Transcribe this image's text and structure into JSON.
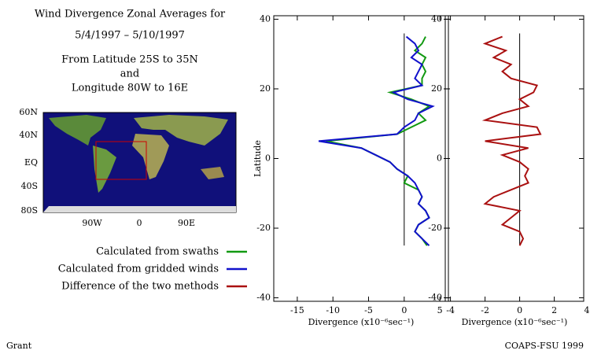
{
  "header": {
    "title": [
      "Wind Divergence Zonal Averages for",
      "5/4/1997 – 5/10/1997"
    ],
    "subtitle": [
      "From Latitude 25S to 35N",
      "and",
      "Longitude 80W to 16E"
    ]
  },
  "map": {
    "lat_labels": [
      "60N",
      "40N",
      "EQ",
      "40S",
      "80S"
    ],
    "lon_labels": [
      "90W",
      "0",
      "90E"
    ]
  },
  "footer": {
    "left": "Grant",
    "right": "COAPS-FSU 1999"
  },
  "chart_data": [
    {
      "type": "line",
      "ylabel": "Latitude",
      "xlabel": "Divergence (x10⁻⁶sec⁻¹)",
      "xlim": [
        -18.3,
        6.2
      ],
      "xticks": [
        -15,
        -10,
        -5,
        0,
        5
      ],
      "ylim": [
        -41,
        41
      ],
      "yticks": [
        -40,
        -20,
        0,
        20,
        40
      ],
      "y": [
        35,
        33,
        31,
        29,
        27,
        25,
        23,
        21,
        19,
        17,
        15,
        13,
        11,
        9,
        7,
        5,
        3,
        1,
        -1,
        -3,
        -5,
        -7,
        -9,
        -11,
        -13,
        -15,
        -17,
        -19,
        -21,
        -23,
        -25
      ],
      "series": [
        {
          "name": "Calculated from swaths",
          "color": "#119911",
          "values": [
            3,
            2.5,
            1.5,
            3,
            2.5,
            3,
            2.5,
            2.5,
            -2,
            1,
            3.5,
            2,
            3,
            1,
            -1,
            -11,
            -6,
            -4,
            -2,
            -1,
            0.5,
            0,
            2,
            2.5,
            2,
            3,
            3.5,
            2,
            1.5,
            2.5,
            3.2
          ]
        },
        {
          "name": "Calculated from gridded winds",
          "color": "#1111cc",
          "values": [
            0.3,
            1.5,
            2,
            1,
            2.5,
            2,
            1.5,
            2.5,
            -1.5,
            0.5,
            4,
            2,
            1.5,
            0,
            -1,
            -12,
            -6,
            -4,
            -2,
            -1,
            0.5,
            1.5,
            2,
            2.5,
            2,
            3,
            3.5,
            2,
            1.5,
            2.5,
            3.5
          ]
        }
      ]
    },
    {
      "type": "line",
      "xlabel": "Divergence (x10⁻⁶sec⁻¹)",
      "xlim": [
        -4.3,
        3.7
      ],
      "xticks": [
        -4,
        -2,
        0,
        2,
        4
      ],
      "ylim": [
        -41,
        41
      ],
      "yticks": [
        -40,
        -20,
        0,
        20,
        40
      ],
      "y": [
        35,
        33,
        31,
        29,
        27,
        25,
        23,
        21,
        19,
        17,
        15,
        13,
        11,
        9,
        7,
        5,
        3,
        1,
        -1,
        -3,
        -5,
        -7,
        -9,
        -11,
        -13,
        -15,
        -17,
        -19,
        -21,
        -23,
        -25
      ],
      "series": [
        {
          "name": "Difference of the two methods",
          "color": "#aa1111",
          "values": [
            -1,
            -2,
            -0.8,
            -1.5,
            -0.5,
            -1,
            -0.5,
            1,
            0.8,
            0,
            0.5,
            -1,
            -2,
            1,
            1.2,
            -2,
            0.5,
            -1,
            0,
            0.5,
            0.3,
            0.5,
            -0.5,
            -1.5,
            -2,
            0,
            -0.5,
            -1,
            0,
            0.2,
            0
          ]
        }
      ]
    }
  ]
}
